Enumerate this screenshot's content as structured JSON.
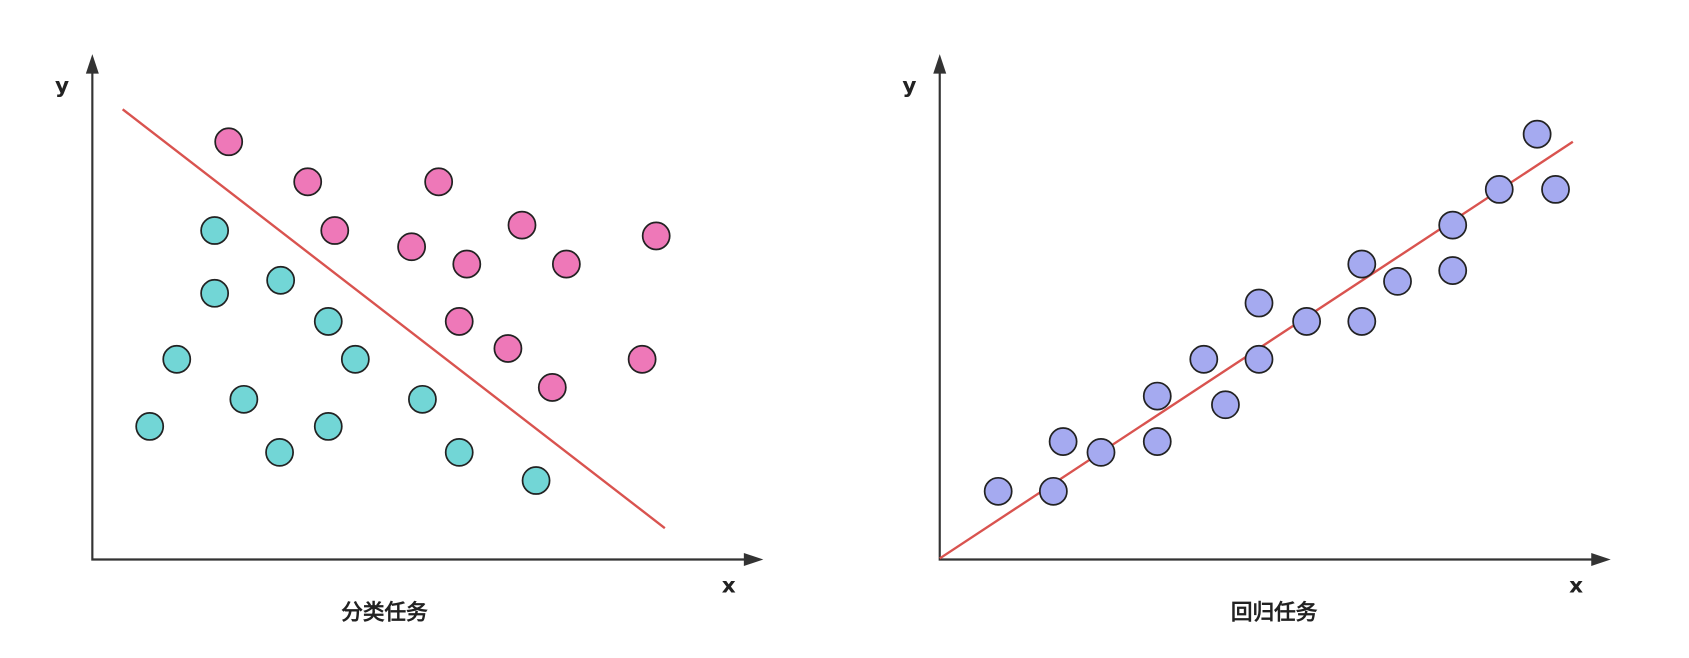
{
  "left": {
    "y_label": "y",
    "x_label": "x",
    "title": "分类任务"
  },
  "right": {
    "y_label": "y",
    "x_label": "x",
    "title": "回归任务"
  }
}
